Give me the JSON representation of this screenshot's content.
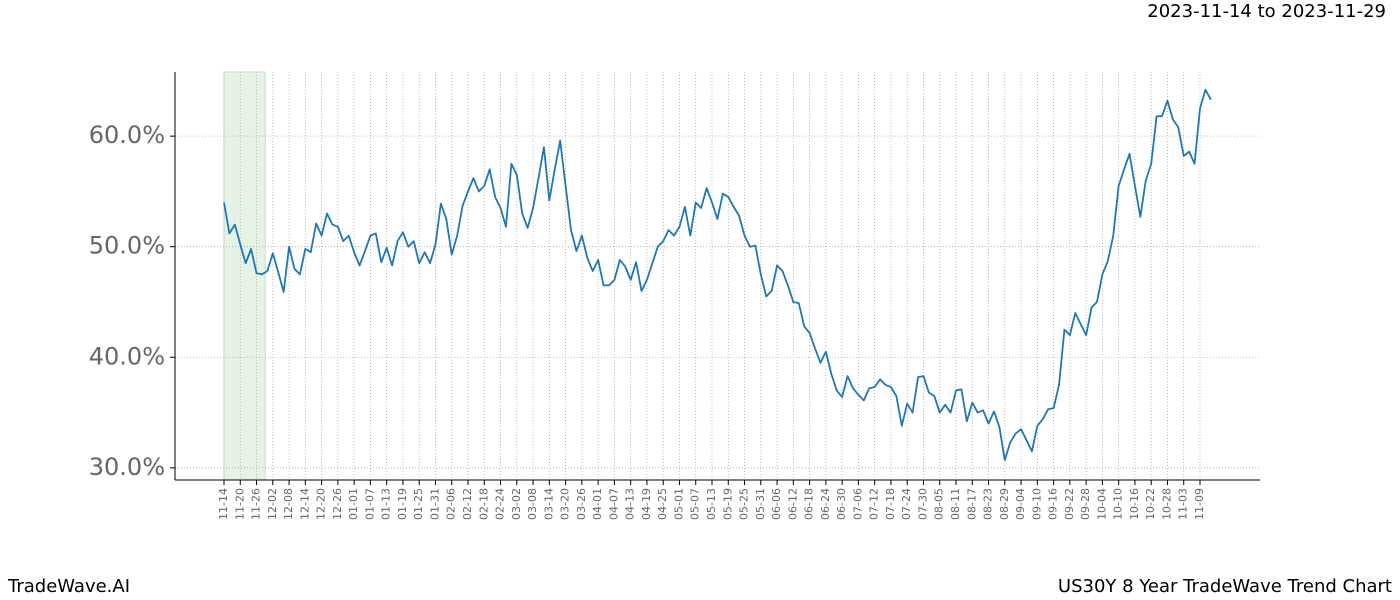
{
  "chart_data": {
    "type": "line",
    "title": "US30Y 8 Year TradeWave Trend Chart",
    "subtitle": "2023-11-14 to 2023-11-29",
    "brand": "TradeWave.AI",
    "categories": [
      "11-14",
      null,
      null,
      "11-20",
      null,
      null,
      "11-26",
      null,
      null,
      "12-02",
      null,
      null,
      "12-08",
      null,
      null,
      "12-14",
      null,
      null,
      "12-20",
      null,
      null,
      "12-26",
      null,
      null,
      "01-01",
      null,
      null,
      "01-07",
      null,
      null,
      "01-13",
      null,
      null,
      "01-19",
      null,
      null,
      "01-25",
      null,
      null,
      "01-31",
      null,
      null,
      "02-06",
      null,
      null,
      "02-12",
      null,
      null,
      "02-18",
      null,
      null,
      "02-24",
      null,
      null,
      "03-02",
      null,
      null,
      "03-08",
      null,
      null,
      "03-14",
      null,
      null,
      "03-20",
      null,
      null,
      "03-26",
      null,
      null,
      "04-01",
      null,
      null,
      "04-07",
      null,
      null,
      "04-13",
      null,
      null,
      "04-19",
      null,
      null,
      "04-25",
      null,
      null,
      "05-01",
      null,
      null,
      "05-07",
      null,
      null,
      "05-13",
      null,
      null,
      "05-19",
      null,
      null,
      "05-25",
      null,
      null,
      "05-31",
      null,
      null,
      "06-06",
      null,
      null,
      "06-12",
      null,
      null,
      "06-18",
      null,
      null,
      "06-24",
      null,
      null,
      "06-30",
      null,
      null,
      "07-06",
      null,
      null,
      "07-12",
      null,
      null,
      "07-18",
      null,
      null,
      "07-24",
      null,
      null,
      "07-30",
      null,
      null,
      "08-05",
      null,
      null,
      "08-11",
      null,
      null,
      "08-17",
      null,
      null,
      "08-23",
      null,
      null,
      "08-29",
      null,
      null,
      "09-04",
      null,
      null,
      "09-10",
      null,
      null,
      "09-16",
      null,
      null,
      "09-22",
      null,
      null,
      "09-28",
      null,
      null,
      "10-04",
      null,
      null,
      "10-10",
      null,
      null,
      "10-16",
      null,
      null,
      "10-22",
      null,
      null,
      "10-28",
      null,
      null,
      "11-03",
      null,
      null,
      "11-09",
      null,
      null
    ],
    "series": [
      {
        "color": "#1f77b4",
        "values": [
          54.0,
          51.2,
          52,
          50.2,
          48.5,
          49.8,
          47.6,
          47.5,
          47.8,
          49.4,
          47.7,
          45.9,
          50,
          48,
          47.5,
          49.8,
          49.5,
          52.1,
          51,
          53,
          52,
          51.8,
          50.5,
          51,
          49.5,
          48.3,
          49.6,
          51,
          51.2,
          48.6,
          49.9,
          48.3,
          50.5,
          51.3,
          50,
          50.5,
          48.5,
          49.5,
          48.5,
          50.2,
          53.9,
          52.5,
          49.3,
          51,
          53.7,
          55,
          56.2,
          55,
          55.5,
          57,
          54.5,
          53.5,
          51.8,
          57.5,
          56.5,
          53,
          51.7,
          53.5,
          56.2,
          59,
          54.2,
          57,
          59.6,
          55.5,
          51.5,
          49.6,
          51,
          49,
          47.8,
          48.8,
          46.5,
          46.5,
          47,
          48.8,
          48.2,
          47,
          48.6,
          46,
          47,
          48.5,
          50,
          50.5,
          51.5,
          51,
          51.8,
          53.6,
          51,
          54,
          53.5,
          55.3,
          54,
          52.5,
          54.8,
          54.5,
          53.6,
          52.8,
          51,
          50,
          50.1,
          47.5,
          45.5,
          46,
          48.3,
          47.8,
          46.5,
          45,
          44.9,
          42.8,
          42.2,
          40.8,
          39.5,
          40.5,
          38.5,
          37,
          36.4,
          38.3,
          37.2,
          36.6,
          36.1,
          37.2,
          37.3,
          38,
          37.5,
          37.3,
          36.5,
          33.8,
          35.8,
          35,
          38.2,
          38.3,
          36.8,
          36.5,
          35,
          35.7,
          35,
          37,
          37.1,
          34.2,
          35.9,
          35,
          35.2,
          34,
          35.1,
          33.7,
          30.7,
          32.3,
          33.1,
          33.5,
          32.5,
          31.5,
          33.8,
          34.4,
          35.3,
          35.4,
          37.5,
          42.5,
          42,
          44,
          43,
          42,
          44.5,
          45,
          47.5,
          48.7,
          51,
          55.5,
          57,
          58.4,
          55.5,
          52.7,
          56,
          57.5,
          61.8,
          61.8,
          63.2,
          61.5,
          60.8,
          58.2,
          58.6,
          57.5,
          62.5,
          64.2,
          63.3
        ]
      }
    ],
    "ylim": [
      28.9,
      65.8
    ],
    "yticks": [
      {
        "value": 30,
        "label": "30.0%"
      },
      {
        "value": 40,
        "label": "40.0%"
      },
      {
        "value": 50,
        "label": "50.0%"
      },
      {
        "value": 60,
        "label": "60.0%"
      }
    ],
    "grid": true
  }
}
